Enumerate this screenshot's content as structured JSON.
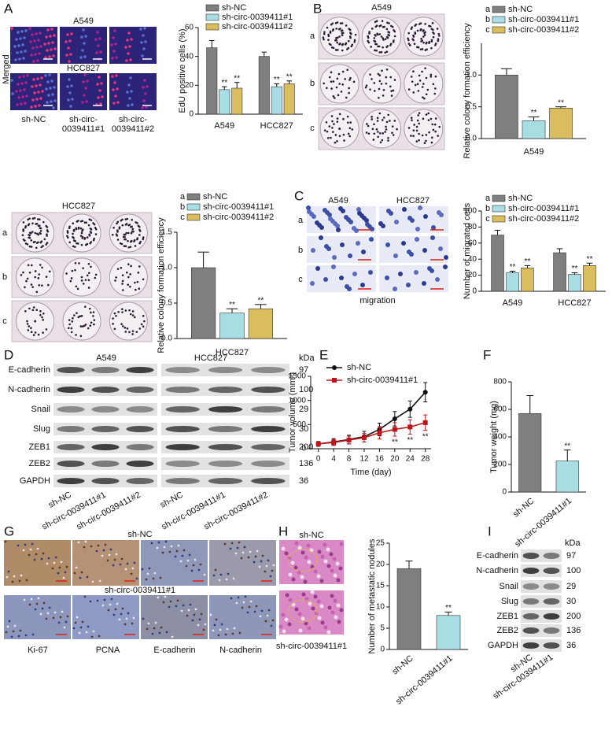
{
  "figure": {
    "panel_labels": [
      "A",
      "B",
      "C",
      "D",
      "E",
      "F",
      "G",
      "H",
      "I"
    ],
    "a_images": {
      "top": "A549",
      "mid": "HCC827",
      "side": "Merged",
      "cols": [
        [
          "sh-NC"
        ],
        [
          "sh-circ-",
          "0039411#1"
        ],
        [
          "sh-circ-",
          "0039411#2"
        ]
      ]
    },
    "b_images": {
      "title": "A549",
      "rows": [
        "a",
        "b",
        "c"
      ]
    },
    "hcc_images": {
      "title": "HCC827",
      "rows": [
        "a",
        "b",
        "c"
      ]
    },
    "c_images": {
      "cols": [
        "A549",
        "HCC827"
      ],
      "rows": [
        "a",
        "b",
        "c"
      ],
      "caption": "migration"
    },
    "d_blot": {
      "groups": [
        "A549",
        "HCC827"
      ],
      "unit": "kDa",
      "proteins": [
        "E-cadherin",
        "N-cadherin",
        "Snail",
        "Slug",
        "ZEB1",
        "ZEB2",
        "GAPDH"
      ],
      "kda": [
        97,
        100,
        29,
        30,
        200,
        136,
        36
      ],
      "lanes": [
        "sh-NC",
        "sh-circ-0039411#1",
        "sh-circ-0039411#2",
        "sh-NC",
        "sh-circ-0039411#1",
        "sh-circ-0039411#2"
      ]
    },
    "g_images": {
      "top": "sh-NC",
      "mid": "sh-circ-0039411#1",
      "stains": [
        "Ki-67",
        "PCNA",
        "E-cadherin",
        "N-cadherin"
      ]
    },
    "h_images": {
      "top": "sh-NC",
      "bottom": "sh-circ-0039411#1"
    },
    "i_blot": {
      "unit": "kDa",
      "proteins": [
        "E-cadherin",
        "N-cadherin",
        "Snail",
        "Slug",
        "ZEB1",
        "ZEB2",
        "GAPDH"
      ],
      "kda": [
        97,
        100,
        29,
        30,
        200,
        136,
        36
      ],
      "lanes": [
        "sh-NC",
        "sh-circ-0039411#1"
      ]
    }
  },
  "chart_data": [
    {
      "type": "bar",
      "ylabel": "EdU positive cells (%)",
      "categories": [
        "A549",
        "HCC827"
      ],
      "ylim": [
        0,
        60
      ],
      "yticks": [
        0,
        20,
        40,
        60
      ],
      "series": [
        {
          "name": "sh-NC",
          "color": "#7f7f7f",
          "values": [
            46,
            40
          ],
          "errors": [
            5,
            3
          ]
        },
        {
          "name": "sh-circ-0039411#1",
          "color": "#a8dde3",
          "values": [
            17,
            19
          ],
          "errors": [
            2,
            2
          ],
          "significance": [
            "**",
            "**"
          ]
        },
        {
          "name": "sh-circ-0039411#2",
          "color": "#d9bd5e",
          "values": [
            18,
            21
          ],
          "errors": [
            4,
            2
          ],
          "significance": [
            "**",
            "**"
          ]
        }
      ]
    },
    {
      "type": "bar",
      "ylabel": "Relative colony formation efficiency",
      "categories": [
        "A549"
      ],
      "ylim": [
        0,
        1.5
      ],
      "yticks": [
        {
          "value": 0,
          "label": "0.0"
        },
        0.5,
        {
          "value": 1,
          "label": "1.0"
        }
      ],
      "series": [
        {
          "key": "a",
          "name": "sh-NC",
          "color": "#7f7f7f",
          "values": [
            1.0
          ],
          "errors": [
            0.1
          ]
        },
        {
          "key": "b",
          "name": "sh-circ-0039411#1",
          "color": "#a8dde3",
          "values": [
            0.28
          ],
          "errors": [
            0.06
          ],
          "significance": [
            "**"
          ]
        },
        {
          "key": "c",
          "name": "sh-circ-0039411#2",
          "color": "#d9bd5e",
          "values": [
            0.48
          ],
          "errors": [
            0.02
          ],
          "significance": [
            "**"
          ]
        }
      ]
    },
    {
      "type": "bar",
      "ylabel": "Relative colony formation efficiency",
      "categories": [
        "HCC827"
      ],
      "ylim": [
        0,
        1.5
      ],
      "yticks": [
        {
          "value": 0,
          "label": "0.0"
        },
        0.5,
        {
          "value": 1,
          "label": "1.0"
        },
        1.5
      ],
      "series": [
        {
          "key": "a",
          "name": "sh-NC",
          "color": "#7f7f7f",
          "values": [
            1.0
          ],
          "errors": [
            0.22
          ]
        },
        {
          "key": "b",
          "name": "sh-circ-0039411#1",
          "color": "#a8dde3",
          "values": [
            0.36
          ],
          "errors": [
            0.06
          ],
          "significance": [
            "**"
          ]
        },
        {
          "key": "c",
          "name": "sh-circ-0039411#2",
          "color": "#d9bd5e",
          "values": [
            0.42
          ],
          "errors": [
            0.06
          ],
          "significance": [
            "**"
          ]
        }
      ]
    },
    {
      "type": "bar",
      "ylabel": "Number of migrated cells",
      "categories": [
        "A549",
        "HCC827"
      ],
      "ylim": [
        0,
        100
      ],
      "yticks": [
        0,
        20,
        40,
        60,
        80,
        100
      ],
      "series": [
        {
          "key": "a",
          "name": "sh-NC",
          "color": "#7f7f7f",
          "values": [
            70,
            48
          ],
          "errors": [
            6,
            5
          ]
        },
        {
          "key": "b",
          "name": "sh-circ-0039411#1",
          "color": "#a8dde3",
          "values": [
            23,
            21
          ],
          "errors": [
            2,
            2
          ],
          "significance": [
            "**",
            "**"
          ]
        },
        {
          "key": "c",
          "name": "sh-circ-0039411#2",
          "color": "#d9bd5e",
          "values": [
            29,
            32
          ],
          "errors": [
            3,
            3
          ],
          "significance": [
            "**",
            "**"
          ]
        }
      ]
    },
    {
      "type": "line",
      "ylabel": "Tumor volume (mm³)",
      "xlabel": "Time (day)",
      "x": [
        0,
        4,
        8,
        12,
        16,
        20,
        24,
        28
      ],
      "xlim": [
        -2,
        29.5
      ],
      "xticks": [
        0,
        4,
        8,
        12,
        16,
        20,
        24,
        28
      ],
      "ylim": [
        0,
        1500
      ],
      "yticks": [
        0,
        500,
        1000,
        1500
      ],
      "series": [
        {
          "name": "sh-NC",
          "color": "#111111",
          "marker": "circle",
          "values": [
            100,
            140,
            190,
            250,
            400,
            620,
            820,
            1170
          ],
          "errors": [
            50,
            70,
            90,
            110,
            130,
            150,
            170,
            200
          ]
        },
        {
          "name": "sh-circ-0039411#1",
          "color": "#c0141c",
          "marker": "square",
          "values": [
            100,
            130,
            180,
            230,
            330,
            400,
            450,
            540
          ],
          "errors": [
            40,
            60,
            80,
            90,
            130,
            140,
            150,
            160
          ],
          "significance": [
            null,
            null,
            null,
            null,
            null,
            "**",
            "**",
            "**"
          ]
        }
      ]
    },
    {
      "type": "bar",
      "ylabel": "Tumor weight (mg)",
      "categories": [
        "sh-NC",
        "sh-circ-0039411#1"
      ],
      "values": [
        570,
        225
      ],
      "errors": [
        130,
        80
      ],
      "colors": [
        "#7f7f7f",
        "#a8dde3"
      ],
      "significance": [
        null,
        "**"
      ],
      "ylim": [
        0,
        800
      ],
      "yticks": [
        0,
        200,
        400,
        600,
        800
      ]
    },
    {
      "type": "bar",
      "ylabel": "Number of metastatic nodules",
      "categories": [
        "sh-NC",
        "sh-circ-0039411#1"
      ],
      "values": [
        19,
        8
      ],
      "errors": [
        1.8,
        0.8
      ],
      "colors": [
        "#7f7f7f",
        "#a8dde3"
      ],
      "significance": [
        null,
        "**"
      ],
      "ylim": [
        0,
        25
      ],
      "yticks": [
        0,
        5,
        10,
        15,
        20,
        25
      ]
    }
  ]
}
